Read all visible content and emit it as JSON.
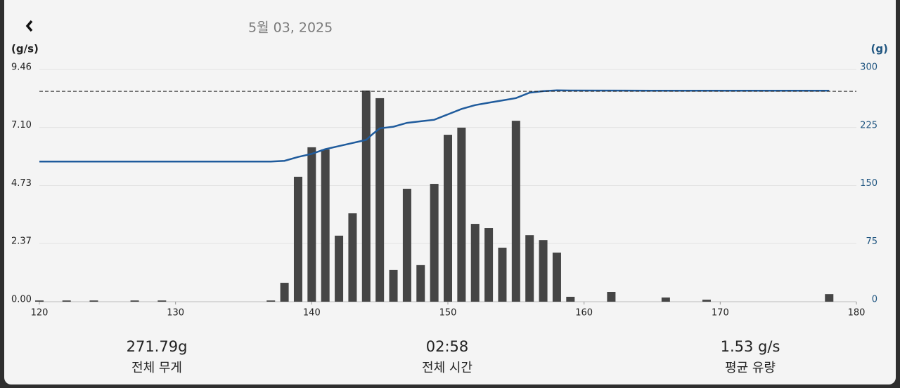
{
  "header": {
    "date": "5월 03, 2025"
  },
  "chart_data": {
    "type": "bar",
    "y_label": "(g/s)",
    "y2_label": "(g)",
    "xlim": [
      120,
      180
    ],
    "xticks": [
      120,
      130,
      140,
      150,
      160,
      170,
      180
    ],
    "ylim": [
      0,
      9.46
    ],
    "yticks": [
      {
        "value": 0,
        "label": "0.00"
      },
      2.37,
      4.73,
      {
        "value": 7.1,
        "label": "7.10"
      },
      9.46
    ],
    "y2lim": [
      0,
      300
    ],
    "y2ticks": [
      0,
      75,
      150,
      225,
      300
    ],
    "grid": true,
    "reference_line": 271.79,
    "series": [
      {
        "type": "bar",
        "color": "#454545",
        "x": [
          120,
          122,
          124,
          127,
          129,
          137,
          138,
          139,
          140,
          141,
          142,
          143,
          144,
          145,
          146,
          147,
          148,
          149,
          150,
          151,
          152,
          153,
          154,
          155,
          156,
          157,
          158,
          159,
          162,
          166,
          169,
          178
        ],
        "values": [
          0.05,
          0.05,
          0.05,
          0.05,
          0.05,
          0.05,
          0.77,
          5.09,
          6.29,
          6.2,
          2.69,
          3.6,
          8.6,
          8.29,
          1.29,
          4.6,
          1.49,
          4.8,
          6.8,
          7.09,
          3.17,
          3.0,
          2.2,
          7.37,
          2.71,
          2.51,
          2.0,
          0.2,
          0.4,
          0.17,
          0.08,
          0.31
        ]
      },
      {
        "type": "line",
        "axis": "y2",
        "color": "#1f5b9c",
        "x": [
          120,
          137,
          138,
          139,
          140,
          141,
          142,
          143,
          144,
          144.5,
          145,
          146,
          147,
          148,
          149,
          150,
          151,
          152,
          153,
          154,
          155,
          156,
          157,
          158,
          159,
          165,
          170,
          178
        ],
        "values": [
          181,
          181,
          182,
          187,
          191,
          197,
          201,
          205,
          209,
          217,
          224,
          226,
          231,
          233,
          235,
          242,
          249,
          254,
          257,
          260,
          263,
          270,
          272,
          273,
          272.8,
          272.6,
          272.6,
          272.5
        ]
      }
    ]
  },
  "stats": [
    {
      "value": "271.79g",
      "label": "전체 무게"
    },
    {
      "value": "02:58",
      "label": "전체 시간"
    },
    {
      "value": "1.53 g/s",
      "label": "평균 유량"
    }
  ]
}
